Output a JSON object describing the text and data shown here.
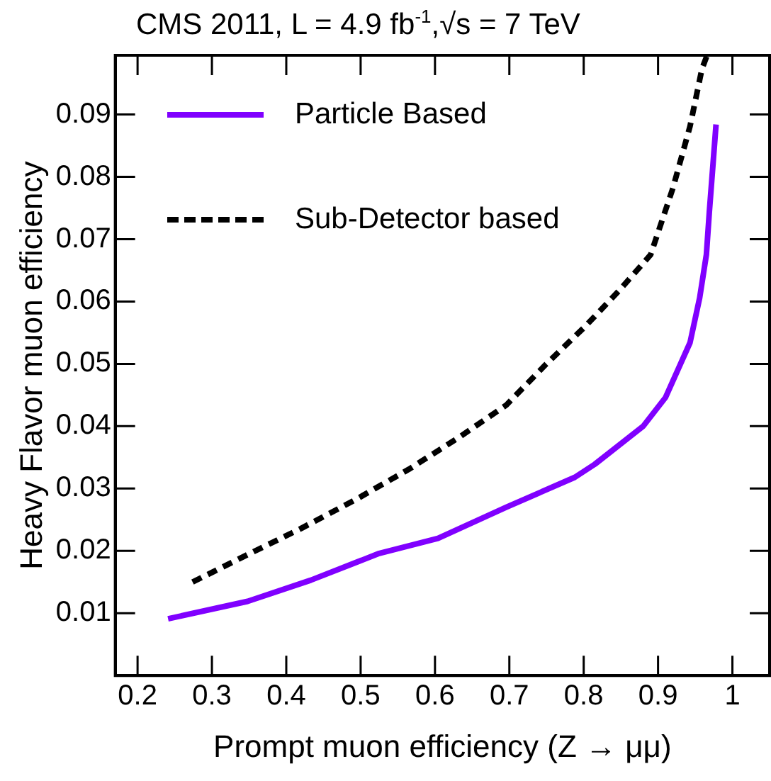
{
  "chart_data": {
    "type": "line",
    "title": "CMS  2011, L = 4.9 fb$^{-1}$,√s = 7 TeV",
    "xlabel": "Prompt muon efficiency (Z → μμ)",
    "ylabel": "Heavy Flavor muon efficiency",
    "xlim": [
      0.17,
      1.05
    ],
    "xticks": [
      {
        "value": 0.2,
        "label": "0.2"
      },
      {
        "value": 0.3,
        "label": "0.3"
      },
      {
        "value": 0.4,
        "label": "0.4"
      },
      {
        "value": 0.5,
        "label": "0.5"
      },
      {
        "value": 0.6,
        "label": "0.6"
      },
      {
        "value": 0.7,
        "label": "0.7"
      },
      {
        "value": 0.8,
        "label": "0.8"
      },
      {
        "value": 0.9,
        "label": "0.9"
      },
      {
        "value": 1,
        "label": "1"
      }
    ],
    "ylim": [
      0,
      0.0995
    ],
    "yticks": [
      0.01,
      0.02,
      0.03,
      0.04,
      0.05,
      0.06,
      0.07,
      0.08,
      0.09
    ],
    "grid": false,
    "legend": "top left",
    "marker": "none",
    "series": [
      {
        "name": "Particle Based",
        "color": "#8000ff",
        "line_style": "solid",
        "x": [
          0.241,
          0.348,
          0.433,
          0.525,
          0.604,
          0.696,
          0.788,
          0.815,
          0.88,
          0.91,
          0.943,
          0.956,
          0.965,
          0.969,
          0.978
        ],
        "values": [
          0.0091,
          0.0119,
          0.0153,
          0.0196,
          0.022,
          0.027,
          0.0318,
          0.0339,
          0.04,
          0.0446,
          0.0534,
          0.0606,
          0.0675,
          0.0744,
          0.0884
        ]
      },
      {
        "name": "Sub-Detector based",
        "color": "#000000",
        "line_style": "dashed",
        "x": [
          0.274,
          0.348,
          0.42,
          0.493,
          0.565,
          0.631,
          0.696,
          0.749,
          0.802,
          0.848,
          0.89,
          0.92,
          0.943,
          0.959,
          0.966
        ],
        "values": [
          0.015,
          0.0194,
          0.0236,
          0.0282,
          0.0331,
          0.0381,
          0.0434,
          0.0499,
          0.056,
          0.0618,
          0.0675,
          0.0782,
          0.0881,
          0.0973,
          0.0995
        ]
      }
    ]
  }
}
